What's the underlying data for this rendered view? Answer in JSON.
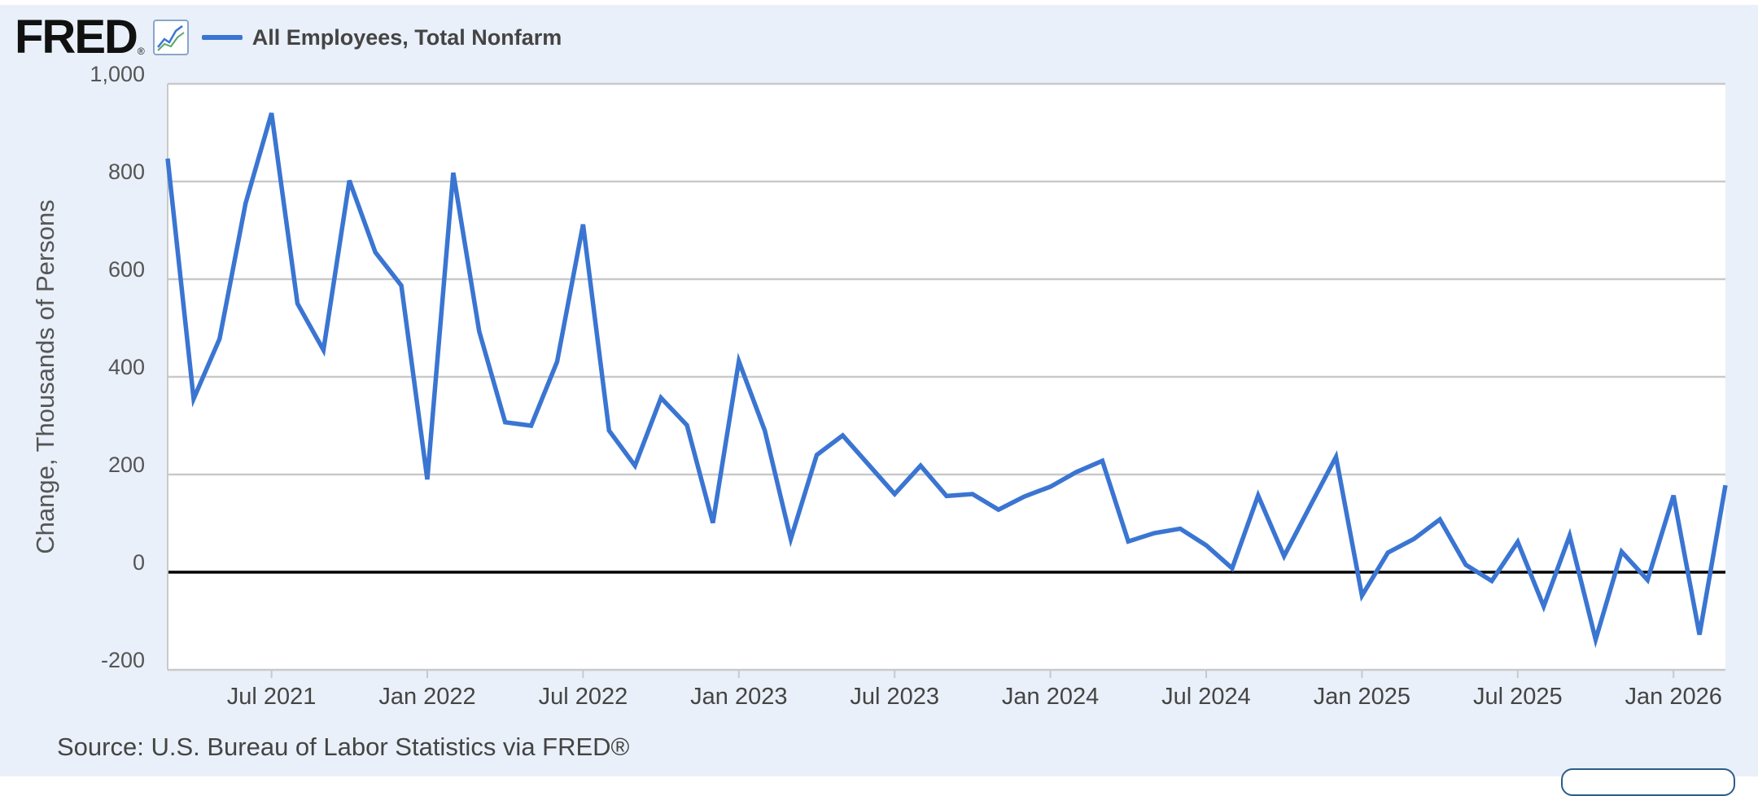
{
  "header": {
    "logo_text": "FRED",
    "logo_reg": "®",
    "icon": "chart-line-icon",
    "legend_label": "All Employees, Total Nonfarm"
  },
  "colors": {
    "series": "#3a75d2",
    "background": "#e9f0f9",
    "plot_background": "#ffffff",
    "grid": "#c9c9c9",
    "zero_line": "#000000"
  },
  "source_text": "Source: U.S. Bureau of Labor Statistics via FRED®",
  "chart_data": {
    "type": "line",
    "title": "",
    "ylabel": "Change, Thousands of Persons",
    "xlabel": "",
    "ylim": [
      -200,
      1000
    ],
    "yticks": [
      -200,
      0,
      200,
      400,
      600,
      800,
      1000
    ],
    "ytick_labels": [
      "-200",
      "0",
      "200",
      "400",
      "600",
      "800",
      "1,000"
    ],
    "xlim": [
      "2021-03",
      "2026-03"
    ],
    "xticks": [
      "2021-07",
      "2022-01",
      "2022-07",
      "2023-01",
      "2023-07",
      "2024-01",
      "2024-07",
      "2025-01",
      "2025-07",
      "2026-01"
    ],
    "xtick_labels": [
      "Jul 2021",
      "Jan 2022",
      "Jul 2022",
      "Jan 2023",
      "Jul 2023",
      "Jan 2024",
      "Jul 2024",
      "Jan 2025",
      "Jul 2025",
      "Jan 2026"
    ],
    "grid": true,
    "legend_position": "top-left",
    "series": [
      {
        "name": "All Employees, Total Nonfarm",
        "color": "#3a75d2",
        "x": [
          "2021-03",
          "2021-04",
          "2021-05",
          "2021-06",
          "2021-07",
          "2021-08",
          "2021-09",
          "2021-10",
          "2021-11",
          "2021-12",
          "2022-01",
          "2022-02",
          "2022-03",
          "2022-04",
          "2022-05",
          "2022-06",
          "2022-07",
          "2022-08",
          "2022-09",
          "2022-10",
          "2022-11",
          "2022-12",
          "2023-01",
          "2023-02",
          "2023-03",
          "2023-04",
          "2023-05",
          "2023-06",
          "2023-07",
          "2023-08",
          "2023-09",
          "2023-10",
          "2023-11",
          "2023-12",
          "2024-01",
          "2024-02",
          "2024-03",
          "2024-04",
          "2024-05",
          "2024-06",
          "2024-07",
          "2024-08",
          "2024-09",
          "2024-10",
          "2024-11",
          "2024-12",
          "2025-01",
          "2025-02",
          "2025-03",
          "2025-04",
          "2025-05",
          "2025-06",
          "2025-07",
          "2025-08",
          "2025-09",
          "2025-10",
          "2025-11",
          "2025-12",
          "2026-01",
          "2026-02",
          "2026-03"
        ],
        "y": [
          847,
          355,
          478,
          755,
          940,
          550,
          455,
          802,
          655,
          587,
          190,
          818,
          493,
          307,
          300,
          431,
          712,
          290,
          218,
          357,
          301,
          101,
          432,
          290,
          68,
          240,
          280,
          220,
          160,
          218,
          156,
          160,
          128,
          155,
          175,
          205,
          228,
          63,
          80,
          89,
          55,
          8,
          157,
          33,
          135,
          236,
          -48,
          40,
          68,
          108,
          15,
          -18,
          62,
          -70,
          75,
          -138,
          42,
          -16,
          157,
          -128,
          178
        ]
      }
    ]
  }
}
